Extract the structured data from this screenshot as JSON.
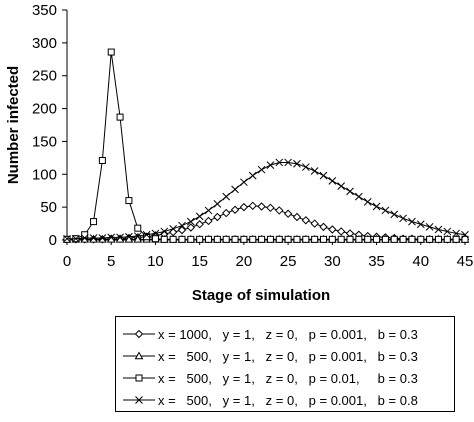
{
  "chart_data": {
    "type": "line",
    "xlabel": "Stage of simulation",
    "ylabel": "Number infected",
    "xlim": [
      0,
      45
    ],
    "ylim": [
      0,
      350
    ],
    "xticks": [
      "0",
      "5",
      "10",
      "15",
      "20",
      "25",
      "30",
      "35",
      "40",
      "45"
    ],
    "yticks": [
      "0",
      "50",
      "100",
      "150",
      "200",
      "250",
      "300",
      "350"
    ],
    "grid": false,
    "legend_position": "bottom",
    "series": [
      {
        "name": "x = 1000,   y = 1,   z = 0,   p = 0.001,   b = 0.3",
        "marker": "diamond",
        "x": [
          0,
          1,
          2,
          3,
          4,
          5,
          6,
          7,
          8,
          9,
          10,
          11,
          12,
          13,
          14,
          15,
          16,
          17,
          18,
          19,
          20,
          21,
          22,
          23,
          24,
          25,
          26,
          27,
          28,
          29,
          30,
          31,
          32,
          33,
          34,
          35,
          36,
          37,
          38,
          39,
          40,
          41,
          42,
          43,
          44,
          45
        ],
        "y": [
          1,
          1,
          1,
          1,
          1,
          2,
          2,
          3,
          4,
          5,
          7,
          9,
          12,
          15,
          19,
          24,
          29,
          35,
          41,
          46,
          50,
          52,
          51,
          49,
          45,
          40,
          35,
          30,
          25,
          20,
          16,
          13,
          10,
          8,
          6,
          5,
          4,
          3,
          2,
          2,
          1,
          1,
          1,
          1,
          1,
          1
        ]
      },
      {
        "name": "x =   500,   y = 1,   z = 0,   p = 0.001,   b = 0.3",
        "marker": "triangle",
        "x": [
          0,
          1,
          2,
          3,
          4,
          5,
          6,
          7,
          8,
          9,
          10,
          11,
          12,
          13,
          14,
          15,
          16,
          17,
          18,
          19,
          20,
          21,
          22,
          23,
          24,
          25,
          26,
          27,
          28,
          29,
          30,
          31,
          32,
          33,
          34,
          35,
          36,
          37,
          38,
          39,
          40,
          41,
          42,
          43,
          44,
          45
        ],
        "y": [
          1,
          1,
          1,
          1,
          1,
          1,
          1,
          1,
          1,
          1,
          1,
          1,
          1,
          1,
          1,
          1,
          1,
          1,
          1,
          1,
          1,
          1,
          1,
          1,
          1,
          1,
          1,
          1,
          1,
          1,
          1,
          1,
          1,
          1,
          1,
          1,
          1,
          1,
          1,
          1,
          1,
          1,
          1,
          1,
          1,
          1
        ]
      },
      {
        "name": "x =   500,   y = 1,   z = 0,   p = 0.01,     b = 0.3",
        "marker": "square",
        "x": [
          0,
          1,
          2,
          3,
          4,
          5,
          6,
          7,
          8,
          9,
          10,
          11,
          12,
          13,
          14,
          15,
          16,
          17,
          18,
          19,
          20,
          21,
          22,
          23,
          24,
          25,
          26,
          27,
          28,
          29,
          30,
          31,
          32,
          33,
          34,
          35,
          36,
          37,
          38,
          39,
          40,
          41,
          42,
          43,
          44,
          45
        ],
        "y": [
          1,
          2,
          8,
          28,
          121,
          286,
          187,
          60,
          18,
          5,
          2,
          1,
          1,
          1,
          1,
          1,
          1,
          1,
          1,
          1,
          1,
          1,
          1,
          1,
          1,
          1,
          1,
          1,
          1,
          1,
          1,
          1,
          1,
          1,
          1,
          1,
          1,
          1,
          1,
          1,
          1,
          1,
          1,
          1,
          1,
          1
        ]
      },
      {
        "name": "x =   500,   y = 1,   z = 0,   p = 0.001,   b = 0.8",
        "marker": "x",
        "x": [
          0,
          1,
          2,
          3,
          4,
          5,
          6,
          7,
          8,
          9,
          10,
          11,
          12,
          13,
          14,
          15,
          16,
          17,
          18,
          19,
          20,
          21,
          22,
          23,
          24,
          25,
          26,
          27,
          28,
          29,
          30,
          31,
          32,
          33,
          34,
          35,
          36,
          37,
          38,
          39,
          40,
          41,
          42,
          43,
          44,
          45
        ],
        "y": [
          2,
          2,
          3,
          3,
          3,
          4,
          4,
          5,
          6,
          8,
          10,
          13,
          17,
          22,
          28,
          36,
          45,
          55,
          66,
          77,
          88,
          98,
          107,
          114,
          118,
          118,
          116,
          111,
          105,
          98,
          90,
          82,
          74,
          66,
          58,
          51,
          45,
          39,
          33,
          28,
          24,
          20,
          16,
          13,
          10,
          8
        ]
      }
    ]
  }
}
